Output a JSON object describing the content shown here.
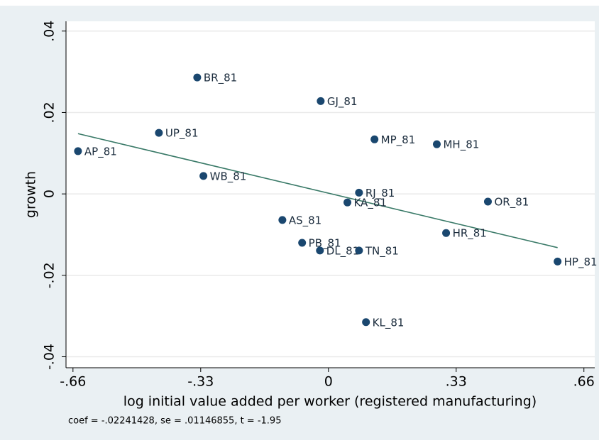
{
  "chart_data": {
    "type": "scatter",
    "xlabel": "log initial value added per worker (registered manufacturing)",
    "ylabel": "growth",
    "note": "coef = -.02241428, se = .01146855, t = -1.95",
    "xlim": [
      -0.678,
      0.688
    ],
    "ylim": [
      -0.0427,
      0.0424
    ],
    "xticks": [
      {
        "value": -0.66,
        "label": "-.66"
      },
      {
        "value": -0.33,
        "label": "-.33"
      },
      0,
      {
        "value": 0.33,
        "label": ".33"
      },
      {
        "value": 0.66,
        "label": ".66"
      }
    ],
    "yticks": [
      {
        "value": -0.04,
        "label": "-.04"
      },
      {
        "value": -0.02,
        "label": "-.02"
      },
      0,
      {
        "value": 0.02,
        "label": ".02"
      },
      {
        "value": 0.04,
        "label": ".04"
      }
    ],
    "grid": true,
    "series": [
      {
        "type": "scatter",
        "color": "#1a476f",
        "labels": [
          "BR_81",
          "GJ_81",
          "UP_81",
          "AP_81",
          "MP_81",
          "MH_81",
          "WB_81",
          "RJ_81",
          "KA_81",
          "OR_81",
          "AS_81",
          "HR_81",
          "PB_81",
          "DL_81",
          "TN_81",
          "HP_81",
          "KL_81"
        ],
        "x": [
          -0.339,
          -0.02,
          -0.438,
          -0.647,
          0.119,
          0.28,
          -0.323,
          0.079,
          0.049,
          0.412,
          -0.119,
          0.304,
          -0.068,
          -0.022,
          0.079,
          0.592,
          0.097
        ],
        "values": [
          0.0286,
          0.0228,
          0.015,
          0.0105,
          0.0134,
          0.0122,
          0.0044,
          0.0003,
          -0.0021,
          -0.0019,
          -0.0064,
          -0.0096,
          -0.012,
          -0.0139,
          -0.0139,
          -0.0166,
          -0.0315
        ]
      },
      {
        "type": "line",
        "color": "#3a7a68",
        "x": [
          -0.647,
          0.592
        ],
        "values": [
          0.0148,
          -0.0132
        ]
      }
    ]
  }
}
